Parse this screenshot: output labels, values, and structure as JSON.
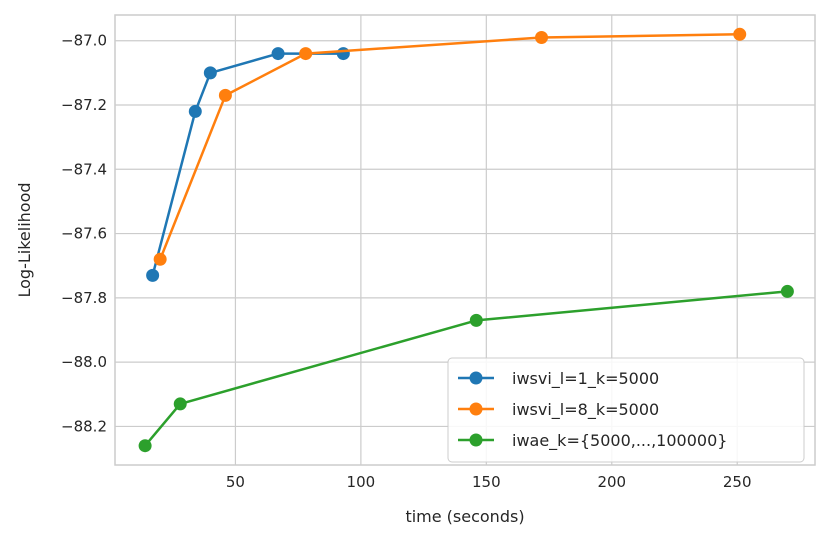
{
  "chart_data": {
    "type": "line",
    "xlabel": "time (seconds)",
    "ylabel": "Log-Likelihood",
    "xlim": [
      2,
      281
    ],
    "ylim": [
      -88.32,
      -86.92
    ],
    "xticks": [
      50,
      100,
      150,
      200,
      250
    ],
    "xtick_labels": [
      "50",
      "100",
      "150",
      "200",
      "250"
    ],
    "yticks": [
      -88.2,
      -88.0,
      -87.8,
      -87.6,
      -87.4,
      -87.2,
      -87.0
    ],
    "ytick_labels": [
      "−88.2",
      "−88.0",
      "−87.8",
      "−87.6",
      "−87.4",
      "−87.2",
      "−87.0"
    ],
    "grid": true,
    "legend_position": "lower-right",
    "series": [
      {
        "name": "iwsvi_l=1_k=5000",
        "color": "#1f77b4",
        "x": [
          17,
          34,
          40,
          67,
          93
        ],
        "y": [
          -87.73,
          -87.22,
          -87.1,
          -87.04,
          -87.04
        ]
      },
      {
        "name": "iwsvi_l=8_k=5000",
        "color": "#ff7f0e",
        "x": [
          20,
          46,
          78,
          172,
          251
        ],
        "y": [
          -87.68,
          -87.17,
          -87.04,
          -86.99,
          -86.98
        ]
      },
      {
        "name": "iwae_k={5000,...,100000}",
        "color": "#2ca02c",
        "x": [
          14,
          28,
          146,
          270
        ],
        "y": [
          -88.26,
          -88.13,
          -87.87,
          -87.78
        ]
      }
    ]
  }
}
